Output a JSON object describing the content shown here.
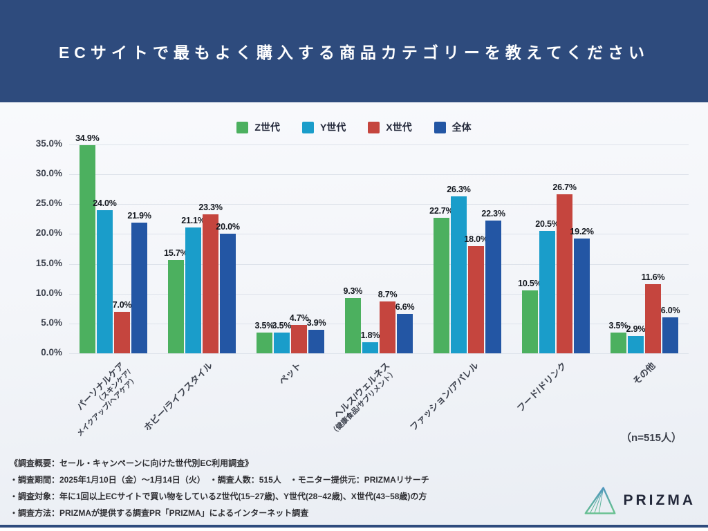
{
  "header": {
    "title": "ECサイトで最もよく購入する商品カテゴリーを教えてください"
  },
  "chart_data": {
    "type": "bar",
    "categories": [
      {
        "label": "パーソナルケア",
        "sublabels": [
          "（スキンケア/",
          "メイクアップ/ヘアケア）"
        ]
      },
      {
        "label": "ホビー/ライフスタイル",
        "sublabels": []
      },
      {
        "label": "ペット",
        "sublabels": []
      },
      {
        "label": "ヘルス/ウェルネス",
        "sublabels": [
          "（健康食品/サプリメント）"
        ]
      },
      {
        "label": "ファッション/アパレル",
        "sublabels": []
      },
      {
        "label": "フード/ドリンク",
        "sublabels": []
      },
      {
        "label": "その他",
        "sublabels": []
      }
    ],
    "series": [
      {
        "name": "Z世代",
        "color": "#4cb05f",
        "values": [
          34.9,
          15.7,
          3.5,
          9.3,
          22.7,
          10.5,
          3.5
        ]
      },
      {
        "name": "Y世代",
        "color": "#1a9dca",
        "values": [
          24.0,
          21.1,
          3.5,
          1.8,
          26.3,
          20.5,
          2.9
        ]
      },
      {
        "name": "X世代",
        "color": "#c5453e",
        "values": [
          7.0,
          23.3,
          4.7,
          8.7,
          18.0,
          26.7,
          11.6
        ]
      },
      {
        "name": "全体",
        "color": "#2356a4",
        "values": [
          21.9,
          20.0,
          3.9,
          6.6,
          22.3,
          19.2,
          6.0
        ]
      }
    ],
    "ylim": [
      0,
      35
    ],
    "ytick_step": 5,
    "ytick_suffix": "%",
    "value_suffix": "%",
    "grid": true,
    "legend_position": "top",
    "xlabel": "",
    "ylabel": ""
  },
  "n_label": "（n=515人）",
  "footer": {
    "lines": [
      "《調査概要：セール・キャンペーンに向けた世代別EC利用調査》",
      "・調査期間：2025年1月10日（金）〜1月14日（火）　・調査人数：515人　・モニター提供元：PRIZMAリサーチ",
      "・調査対象：年に1回以上ECサイトで買い物をしているZ世代(15~27歳)、Y世代(28~42歳)、X世代(43~58歳)の方",
      "・調査方法：PRIZMAが提供する調査PR「PRIZMA」によるインターネット調査"
    ]
  },
  "logo": {
    "text": "PRIZMA"
  },
  "colors": {
    "header_bg": "#2e4b7d",
    "gridline": "#dde2ea",
    "value_label": "#14181f",
    "axis_label": "#3c414d"
  }
}
